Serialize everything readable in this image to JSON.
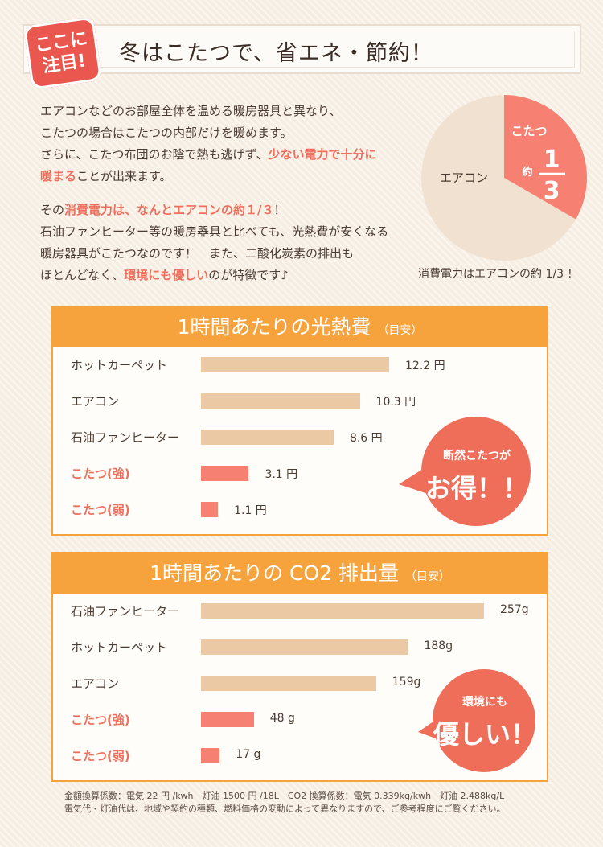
{
  "header": {
    "title": "冬はこたつで、省エネ・節約！",
    "badge_line1": "ここに",
    "badge_line2": "注目!"
  },
  "intro": {
    "p1": [
      [
        {
          "t": "エアコンなどのお部屋全体を温める暖房器具と異なり、",
          "hl": false
        }
      ],
      [
        {
          "t": "こたつの場合はこたつの内部だけを暖めます。",
          "hl": false
        }
      ],
      [
        {
          "t": "さらに、こたつ布団のお陰で熱も逃げず、",
          "hl": false
        },
        {
          "t": "少ない電力で十分に",
          "hl": true
        }
      ],
      [
        {
          "t": "暖まる",
          "hl": true
        },
        {
          "t": "ことが出来ます。",
          "hl": false
        }
      ]
    ],
    "p2": [
      [
        {
          "t": "その",
          "hl": false
        },
        {
          "t": "消費電力は、なんとエアコンの約１/３",
          "hl": true
        },
        {
          "t": "！",
          "hl": false
        }
      ],
      [
        {
          "t": "石油ファンヒーター等の暖房器具と比べても、光熱費が安くなる",
          "hl": false
        }
      ],
      [
        {
          "t": "暖房器具がこたつなのです！　また、二酸化炭素の排出も",
          "hl": false
        }
      ],
      [
        {
          "t": "ほとんどなく、",
          "hl": false
        },
        {
          "t": "環境にも優しい",
          "hl": true
        },
        {
          "t": "のが特徴です♪",
          "hl": false
        }
      ]
    ]
  },
  "pie": {
    "aircon_label": "エアコン",
    "kotatsu_label": "こたつ",
    "approx_label": "約",
    "fraction_num": "1",
    "fraction_den": "3",
    "caption": "消費電力はエアコンの約 1/3 ！",
    "colors": {
      "aircon": "#f1e1d1",
      "kotatsu": "#f68172"
    }
  },
  "callout1": {
    "line1": "断然こたつが",
    "line2": "お得！！"
  },
  "callout2": {
    "line1": "環境にも",
    "line2": "優しい！"
  },
  "footnote": {
    "line1": "金額換算係数：電気 22 円 /kwh　灯油 1500 円 /18L　CO2 換算係数：電気 0.339kg/kwh　灯油 2.488kg/L",
    "line2": "電気代・灯油代は、地域や契約の種類、燃料価格の変動によって異なりますので、ご参考程度にご覧ください。"
  },
  "chart_data": [
    {
      "type": "pie",
      "slices": [
        {
          "label": "エアコン",
          "value": 2
        },
        {
          "label": "こたつ",
          "value": 1
        }
      ],
      "title": "",
      "caption": "消費電力はエアコンの約 1/3 ！"
    },
    {
      "type": "bar",
      "orientation": "horizontal",
      "title": "1時間あたりの光熱費",
      "subtitle": "（目安）",
      "categories": [
        "ホットカーペット",
        "エアコン",
        "石油ファンヒーター",
        "こたつ(強)",
        "こたつ(弱)"
      ],
      "values": [
        12.2,
        10.3,
        8.6,
        3.1,
        1.1
      ],
      "value_labels": [
        "12.2 円",
        "10.3 円",
        "8.6 円",
        "3.1 円",
        "1.1 円"
      ],
      "highlighted": [
        false,
        false,
        false,
        true,
        true
      ],
      "xlim": [
        0,
        12.2
      ],
      "grid": false,
      "colors": {
        "normal": "#eac9a4",
        "highlight": "#f68172"
      }
    },
    {
      "type": "bar",
      "orientation": "horizontal",
      "title": "1時間あたりの CO2 排出量",
      "subtitle": "（目安）",
      "categories": [
        "石油ファンヒーター",
        "ホットカーペット",
        "エアコン",
        "こたつ(強)",
        "こたつ(弱)"
      ],
      "values": [
        257,
        188,
        159,
        48,
        17
      ],
      "value_labels": [
        "257g",
        "188g",
        "159g",
        "48 g",
        "17 g"
      ],
      "highlighted": [
        false,
        false,
        false,
        true,
        true
      ],
      "xlim": [
        0,
        257
      ],
      "grid": false,
      "colors": {
        "normal": "#eac9a4",
        "highlight": "#f68172"
      }
    }
  ]
}
